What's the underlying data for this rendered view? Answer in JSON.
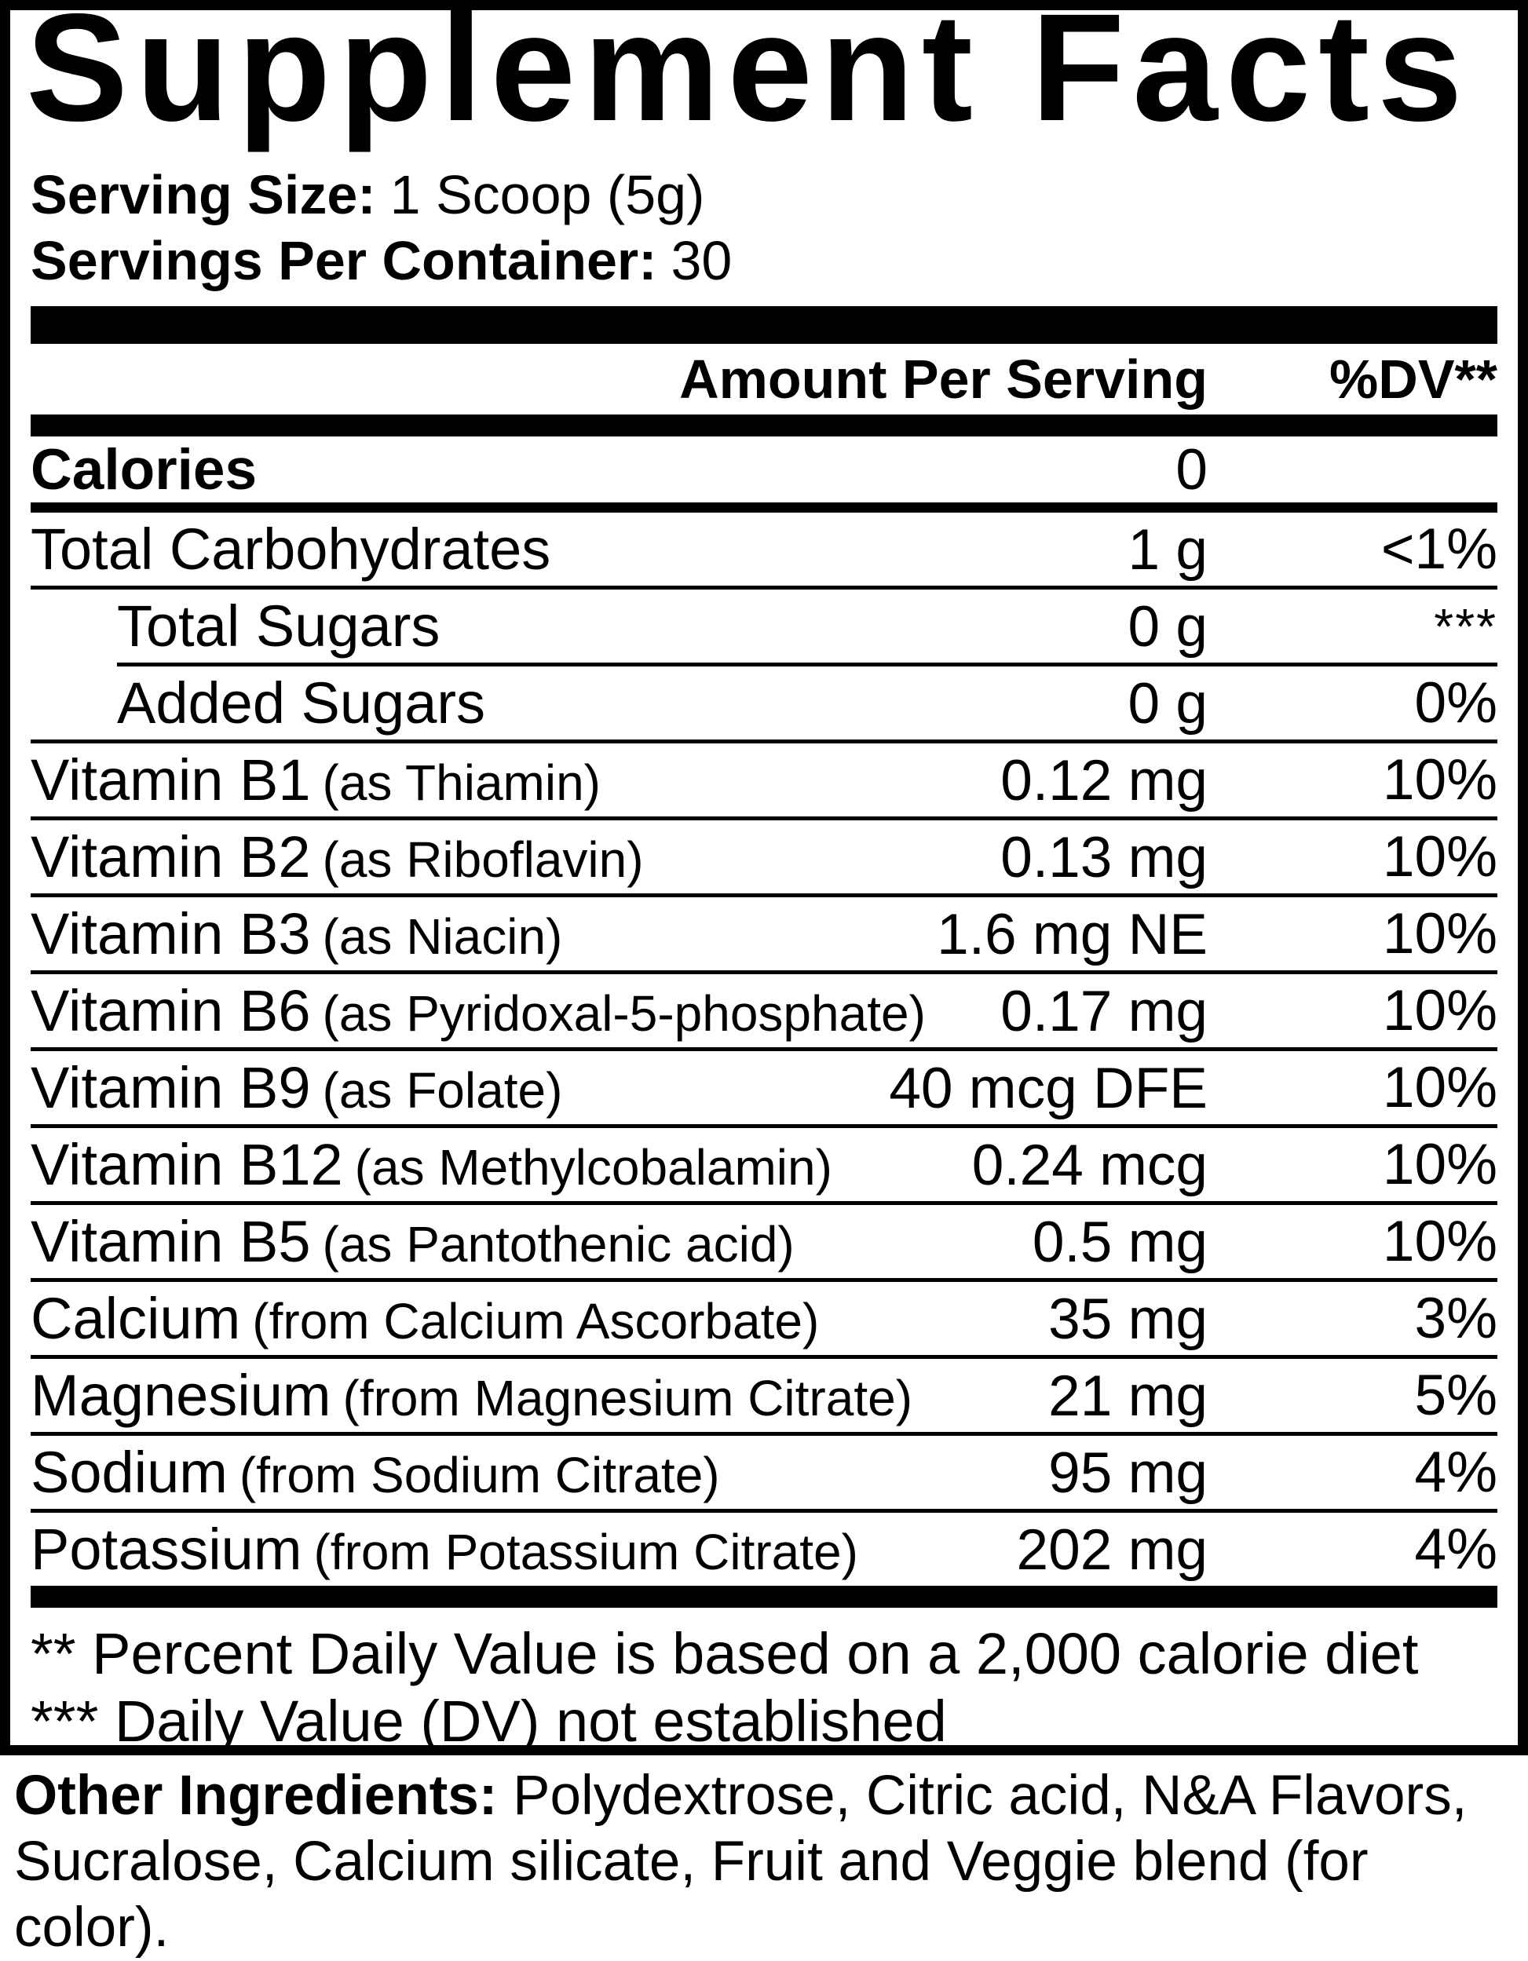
{
  "title": "Supplement Facts",
  "serving_info": [
    {
      "label": "Serving Size:",
      "value": "1 Scoop (5g)"
    },
    {
      "label": "Servings Per Container:",
      "value": "30"
    }
  ],
  "header": {
    "amount": "Amount Per Serving",
    "dv": "%DV**"
  },
  "calories": {
    "name": "Calories",
    "amount": "0"
  },
  "rows": [
    {
      "name": "Total Carbohydrates",
      "qualifier": "",
      "amount": "1 g",
      "dv": "<1%",
      "indent": false,
      "sep_indent": false,
      "dv_raised": false
    },
    {
      "name": "Total Sugars",
      "qualifier": "",
      "amount": "0 g",
      "dv": "***",
      "indent": true,
      "sep_indent": false,
      "dv_raised": true
    },
    {
      "name": "Added Sugars",
      "qualifier": "",
      "amount": "0 g",
      "dv": "0%",
      "indent": true,
      "sep_indent": true,
      "dv_raised": false
    },
    {
      "name": "Vitamin B1",
      "qualifier": "(as Thiamin)",
      "amount": "0.12 mg",
      "dv": "10%",
      "indent": false,
      "sep_indent": false,
      "dv_raised": false
    },
    {
      "name": "Vitamin B2",
      "qualifier": "(as Riboflavin)",
      "amount": "0.13 mg",
      "dv": "10%",
      "indent": false,
      "sep_indent": false,
      "dv_raised": false
    },
    {
      "name": "Vitamin B3",
      "qualifier": "(as Niacin)",
      "amount": "1.6 mg NE",
      "dv": "10%",
      "indent": false,
      "sep_indent": false,
      "dv_raised": false
    },
    {
      "name": "Vitamin B6",
      "qualifier": "(as Pyridoxal-5-phosphate)",
      "amount": "0.17 mg",
      "dv": "10%",
      "indent": false,
      "sep_indent": false,
      "dv_raised": false
    },
    {
      "name": "Vitamin B9",
      "qualifier": "(as Folate)",
      "amount": "40 mcg DFE",
      "dv": "10%",
      "indent": false,
      "sep_indent": false,
      "dv_raised": false
    },
    {
      "name": "Vitamin B12",
      "qualifier": "(as Methylcobalamin)",
      "amount": "0.24 mcg",
      "dv": "10%",
      "indent": false,
      "sep_indent": false,
      "dv_raised": false
    },
    {
      "name": "Vitamin B5",
      "qualifier": "(as Pantothenic acid)",
      "amount": "0.5 mg",
      "dv": "10%",
      "indent": false,
      "sep_indent": false,
      "dv_raised": false
    },
    {
      "name": "Calcium",
      "qualifier": "(from Calcium Ascorbate)",
      "amount": "35 mg",
      "dv": "3%",
      "indent": false,
      "sep_indent": false,
      "dv_raised": false
    },
    {
      "name": "Magnesium",
      "qualifier": "(from Magnesium Citrate)",
      "amount": "21 mg",
      "dv": "5%",
      "indent": false,
      "sep_indent": false,
      "dv_raised": false
    },
    {
      "name": "Sodium",
      "qualifier": "(from Sodium Citrate)",
      "amount": "95 mg",
      "dv": "4%",
      "indent": false,
      "sep_indent": false,
      "dv_raised": false
    },
    {
      "name": "Potassium",
      "qualifier": "(from Potassium Citrate)",
      "amount": "202 mg",
      "dv": "4%",
      "indent": false,
      "sep_indent": false,
      "dv_raised": false
    }
  ],
  "footnotes": [
    "** Percent Daily Value is based on a 2,000 calorie diet",
    "*** Daily Value (DV) not established"
  ],
  "other_ingredients": {
    "label": "Other Ingredients:",
    "lines": [
      " Polydextrose, Citric acid, N&A Flavors,",
      "Sucralose, Calcium silicate, Fruit and Veggie blend (for color)."
    ]
  },
  "colors": {
    "ink": "#000000",
    "paper": "#ffffff"
  }
}
